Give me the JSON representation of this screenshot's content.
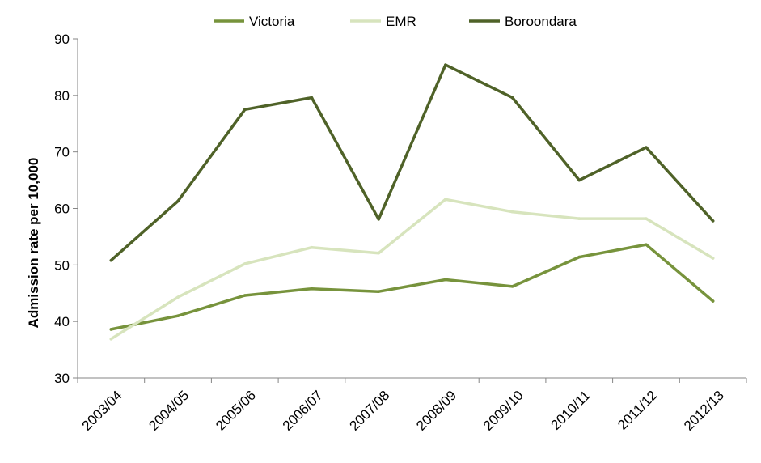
{
  "chart_data": {
    "type": "line",
    "title": "",
    "xlabel": "",
    "ylabel": "Admission rate per 10,000",
    "ylim": [
      30,
      90
    ],
    "yticks": [
      30,
      40,
      50,
      60,
      70,
      80,
      90
    ],
    "grid": false,
    "legend_position": "top-center",
    "categories": [
      "2003/04",
      "2004/05",
      "2005/06",
      "2006/07",
      "2007/08",
      "2008/09",
      "2009/10",
      "2010/11",
      "2011/12",
      "2012/13"
    ],
    "series": [
      {
        "name": "Victoria",
        "color": "#77933c",
        "values": [
          38.6,
          41.0,
          44.6,
          45.8,
          45.3,
          47.4,
          46.2,
          51.4,
          53.6,
          43.6
        ]
      },
      {
        "name": "EMR",
        "color": "#d7e4bd",
        "values": [
          36.9,
          44.3,
          50.2,
          53.1,
          52.1,
          61.6,
          59.4,
          58.2,
          58.2,
          51.2
        ]
      },
      {
        "name": "Boroondara",
        "color": "#4f6228",
        "values": [
          50.8,
          61.3,
          77.5,
          79.6,
          58.1,
          85.4,
          79.6,
          65.0,
          70.8,
          57.8
        ]
      }
    ]
  }
}
